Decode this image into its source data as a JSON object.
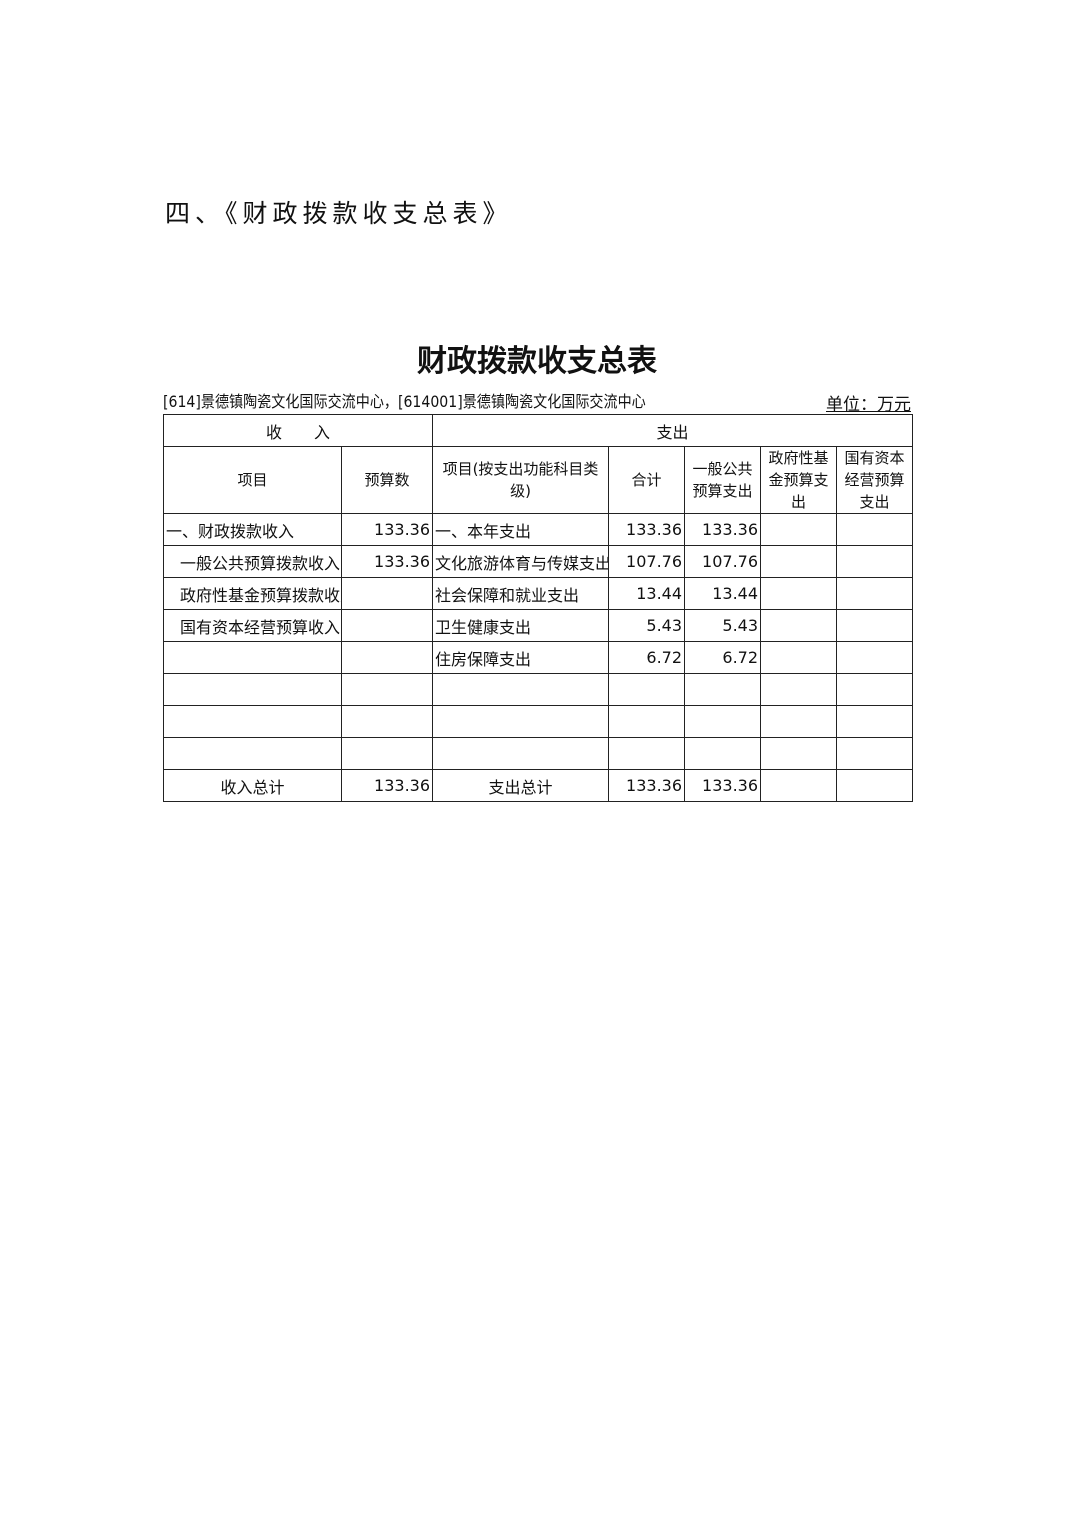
{
  "heading": "四、《财政拨款收支总表》",
  "table_title": "财政拨款收支总表",
  "subtitle": "[614]景德镇陶瓷文化国际交流中心，[614001]景德镇陶瓷文化国际交流中心",
  "unit": "单位：万元",
  "group_headers": {
    "income": "收　　入",
    "expense": "支出"
  },
  "columns": [
    "项目",
    "预算数",
    "项目(按支出功能科目类级)",
    "合计",
    "一般公共预算支出",
    "政府性基金预算支出",
    "国有资本经营预算支出"
  ],
  "rows": [
    [
      "一、财政拨款收入",
      "133.36",
      "一、本年支出",
      "133.36",
      "133.36",
      "",
      ""
    ],
    [
      "一般公共预算拨款收入",
      "133.36",
      "文化旅游体育与传媒支出",
      "107.76",
      "107.76",
      "",
      ""
    ],
    [
      "政府性基金预算拨款收入",
      "",
      "社会保障和就业支出",
      "13.44",
      "13.44",
      "",
      ""
    ],
    [
      "国有资本经营预算收入",
      "",
      "卫生健康支出",
      "5.43",
      "5.43",
      "",
      ""
    ],
    [
      "",
      "",
      "住房保障支出",
      "6.72",
      "6.72",
      "",
      ""
    ],
    [
      "",
      "",
      "",
      "",
      "",
      "",
      ""
    ],
    [
      "",
      "",
      "",
      "",
      "",
      "",
      ""
    ],
    [
      "",
      "",
      "",
      "",
      "",
      "",
      ""
    ]
  ],
  "total": [
    "收入总计",
    "133.36",
    "支出总计",
    "133.36",
    "133.36",
    "",
    ""
  ]
}
